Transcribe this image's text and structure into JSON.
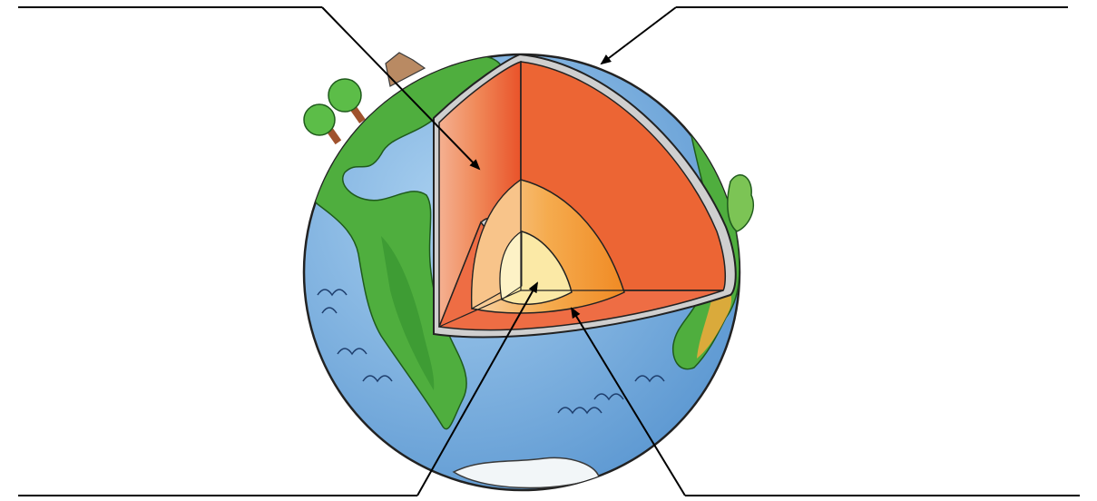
{
  "diagram": {
    "kind": "earth-cross-section",
    "layers": [
      "crust",
      "mantle",
      "outer-core",
      "inner-core"
    ],
    "labels": {
      "top_left": "",
      "top_right": "",
      "bottom_left": "",
      "bottom_right": ""
    },
    "colors": {
      "ocean": "#6aa6dc",
      "ocean_light": "#9cc6ea",
      "land": "#4caa3c",
      "land_dark": "#2f8a2a",
      "crust": "#3a3a3a",
      "mantle_light": "#f3a07c",
      "mantle": "#ee6a3a",
      "outer_core_light": "#f7c48e",
      "outer_core": "#f39a2e",
      "inner_core": "#fbe9a6",
      "line": "#000000"
    }
  }
}
